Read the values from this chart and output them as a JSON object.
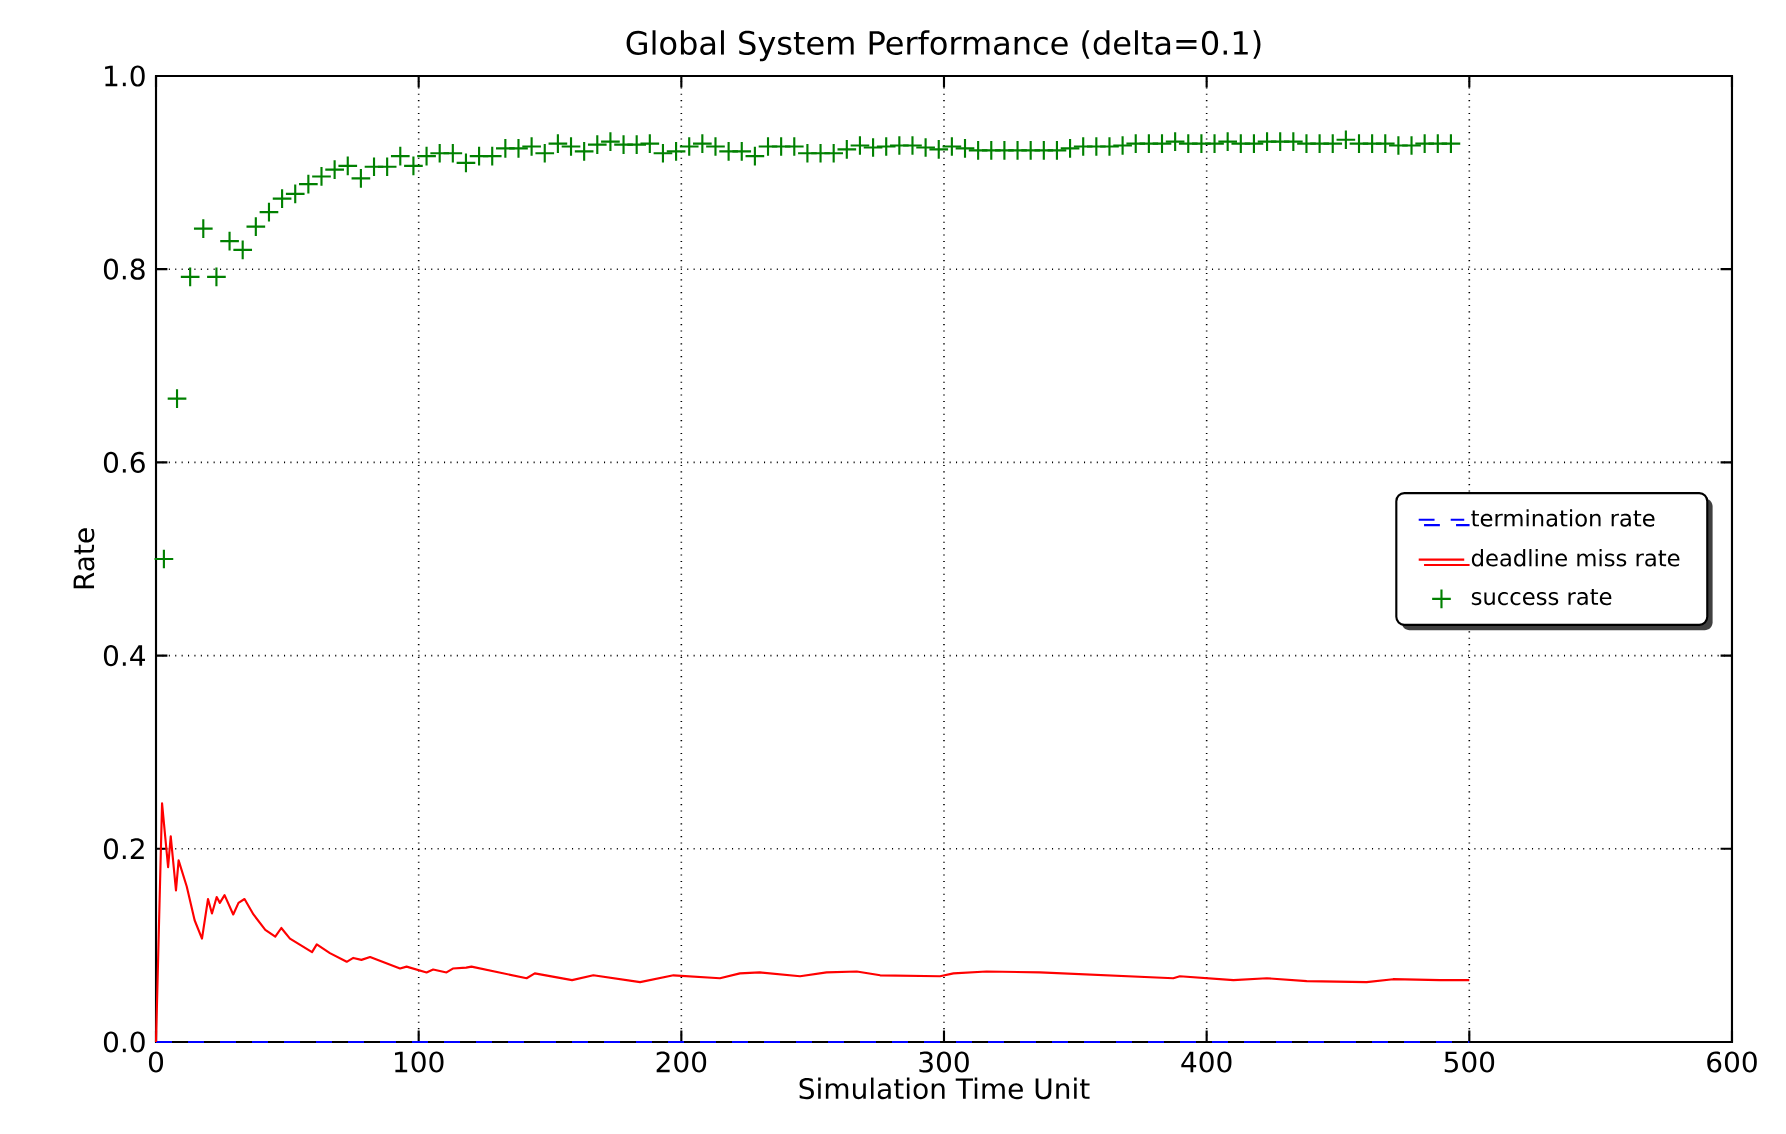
{
  "chart_data": {
    "type": "line",
    "title": "Global System Performance (delta=0.1)",
    "xlabel": "Simulation Time Unit",
    "ylabel": "Rate",
    "xlim": [
      0,
      600
    ],
    "xticks": [
      0,
      100,
      200,
      300,
      400,
      500,
      600
    ],
    "ylim": [
      0,
      1
    ],
    "yticks": [
      {
        "value": 0,
        "label": "0.0"
      },
      {
        "value": 0.2,
        "label": "0.2"
      },
      {
        "value": 0.4,
        "label": "0.4"
      },
      {
        "value": 0.6,
        "label": "0.6"
      },
      {
        "value": 0.8,
        "label": "0.8"
      },
      {
        "value": 1,
        "label": "1.0"
      }
    ],
    "grid": true,
    "legend": "right",
    "series": [
      {
        "name": "termination rate",
        "color": "#0000ff",
        "line_style": "dashed",
        "marker": "none",
        "x": [
          0,
          500
        ],
        "values": [
          0,
          0
        ]
      },
      {
        "name": "deadline miss rate",
        "color": "#ff0000",
        "line_style": "solid",
        "marker": "none",
        "x": [
          0,
          2.3,
          4.6,
          5.6,
          7.6,
          8.6,
          11.7,
          14.7,
          17.5,
          19.8,
          21.3,
          23.1,
          24.3,
          26.1,
          29.4,
          31.4,
          33.7,
          37.1,
          41.6,
          45.4,
          47.7,
          51,
          59.4,
          61.2,
          66.2,
          72.6,
          75.1,
          78.2,
          81.5,
          92.9,
          95.4,
          103,
          105.5,
          110.6,
          113,
          118.1,
          120.1,
          141.1,
          144.2,
          158.4,
          166.5,
          184.3,
          197,
          214.7,
          222.3,
          229.9,
          245.2,
          255.3,
          266.8,
          275.7,
          298.5,
          303.6,
          316.2,
          336.5,
          361.9,
          387.3,
          389.8,
          410.2,
          422.9,
          438.1,
          460.9,
          471,
          488.8,
          500
        ],
        "values": [
          0,
          0.247,
          0.181,
          0.213,
          0.157,
          0.188,
          0.161,
          0.126,
          0.107,
          0.148,
          0.133,
          0.15,
          0.144,
          0.152,
          0.132,
          0.144,
          0.148,
          0.132,
          0.116,
          0.109,
          0.118,
          0.107,
          0.093,
          0.101,
          0.092,
          0.083,
          0.087,
          0.085,
          0.088,
          0.076,
          0.078,
          0.072,
          0.075,
          0.072,
          0.076,
          0.077,
          0.078,
          0.066,
          0.071,
          0.064,
          0.069,
          0.062,
          0.069,
          0.066,
          0.071,
          0.072,
          0.068,
          0.072,
          0.073,
          0.069,
          0.068,
          0.071,
          0.073,
          0.072,
          0.069,
          0.066,
          0.068,
          0.064,
          0.066,
          0.063,
          0.062,
          0.065,
          0.064,
          0.064
        ]
      },
      {
        "name": "success rate",
        "type": "scatter",
        "color": "#008000",
        "marker": "cross",
        "x": [
          3,
          8,
          13,
          18,
          23,
          28,
          33,
          38,
          43,
          48,
          53,
          58,
          63,
          68,
          73,
          78,
          83,
          88,
          93,
          98,
          103,
          108,
          113,
          118,
          123,
          128,
          133,
          138,
          143,
          148,
          153,
          158,
          163,
          168,
          173,
          178,
          183,
          188,
          193,
          198,
          203,
          208,
          213,
          218,
          223,
          228,
          233,
          238,
          243,
          248,
          253,
          258,
          263,
          268,
          273,
          278,
          283,
          288,
          293,
          298,
          303,
          308,
          313,
          318,
          323,
          328,
          333,
          338,
          343,
          348,
          353,
          358,
          363,
          368,
          373,
          378,
          383,
          388,
          393,
          398,
          403,
          408,
          413,
          418,
          423,
          428,
          433,
          438,
          443,
          448,
          453,
          458,
          463,
          468,
          473,
          478,
          483,
          488,
          493
        ],
        "values": [
          0.5,
          0.666,
          0.792,
          0.842,
          0.792,
          0.829,
          0.82,
          0.844,
          0.859,
          0.873,
          0.878,
          0.888,
          0.896,
          0.903,
          0.907,
          0.894,
          0.906,
          0.906,
          0.917,
          0.907,
          0.917,
          0.92,
          0.92,
          0.91,
          0.917,
          0.917,
          0.925,
          0.925,
          0.927,
          0.92,
          0.93,
          0.927,
          0.922,
          0.929,
          0.932,
          0.929,
          0.929,
          0.93,
          0.92,
          0.922,
          0.927,
          0.93,
          0.927,
          0.922,
          0.922,
          0.917,
          0.927,
          0.927,
          0.927,
          0.92,
          0.92,
          0.92,
          0.924,
          0.928,
          0.926,
          0.927,
          0.928,
          0.928,
          0.926,
          0.924,
          0.927,
          0.925,
          0.923,
          0.923,
          0.923,
          0.923,
          0.923,
          0.923,
          0.923,
          0.925,
          0.927,
          0.927,
          0.927,
          0.928,
          0.93,
          0.93,
          0.93,
          0.932,
          0.93,
          0.93,
          0.93,
          0.932,
          0.93,
          0.93,
          0.932,
          0.932,
          0.932,
          0.93,
          0.93,
          0.93,
          0.934,
          0.93,
          0.93,
          0.93,
          0.928,
          0.928,
          0.93,
          0.93,
          0.93
        ]
      }
    ]
  }
}
